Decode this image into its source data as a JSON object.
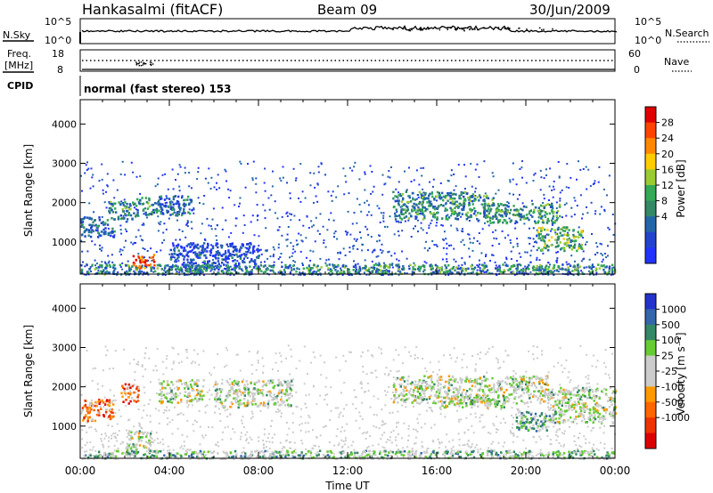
{
  "header": {
    "station": "Hankasalmi (fitACF)",
    "beam": "Beam 09",
    "date": "30/Jun/2009"
  },
  "noise_panel": {
    "left_label": "N.Sky",
    "right_label": "N.Search",
    "left_ticks": [
      "10^5",
      "10^0"
    ],
    "right_ticks": [
      "10^5",
      "10^0"
    ]
  },
  "freq_panel": {
    "left_label_1": "Freq.",
    "left_label_2": "[MHz]",
    "left_ticks": [
      "18",
      "8"
    ],
    "right_label": "Nave",
    "right_ticks": [
      "60",
      "0"
    ],
    "cpid_label": "CPID",
    "cpid_text": "normal (fast stereo) 153"
  },
  "chart_data": [
    {
      "type": "heatmap",
      "name": "power",
      "title": "",
      "xlabel": "",
      "ylabel": "Slant Range [km]",
      "x_ticks": [
        "00:00",
        "04:00",
        "08:00",
        "12:00",
        "16:00",
        "20:00",
        "00:00"
      ],
      "x_range_hours": [
        0,
        24
      ],
      "ylim": [
        180,
        4620
      ],
      "y_ticks": [
        1000,
        2000,
        3000,
        4000
      ],
      "colorbar_label": "Power [dB]",
      "colorbar_ticks": [
        "28",
        "24",
        "20",
        "16",
        "12",
        "8",
        "4"
      ],
      "colorbar_colors": [
        "#e00000",
        "#ff4400",
        "#ff8800",
        "#ffcc00",
        "#99cc33",
        "#33aa55",
        "#338866",
        "#2266aa",
        "#2244cc",
        "#2233ff"
      ],
      "features": [
        {
          "t": [
            0,
            1.5
          ],
          "r": [
            1150,
            1650
          ],
          "level": 7
        },
        {
          "t": [
            1.2,
            2.6
          ],
          "r": [
            1600,
            2050
          ],
          "level": 6
        },
        {
          "t": [
            2.3,
            3.3
          ],
          "r": [
            350,
            700
          ],
          "level": 1
        },
        {
          "t": [
            2.5,
            3.6
          ],
          "r": [
            1700,
            2150
          ],
          "level": 6
        },
        {
          "t": [
            3.5,
            5.0
          ],
          "r": [
            1700,
            2200
          ],
          "level": 7
        },
        {
          "t": [
            4.0,
            8.0
          ],
          "r": [
            300,
            1000
          ],
          "level": 8
        },
        {
          "t": [
            14.0,
            18.5
          ],
          "r": [
            1600,
            2300
          ],
          "level": 6
        },
        {
          "t": [
            18.0,
            21.5
          ],
          "r": [
            1500,
            2000
          ],
          "level": 6
        },
        {
          "t": [
            20.5,
            22.5
          ],
          "r": [
            800,
            1400
          ],
          "level": 5
        },
        {
          "t": [
            0,
            24
          ],
          "r": [
            200,
            450
          ],
          "level": 6
        }
      ]
    },
    {
      "type": "heatmap",
      "name": "velocity",
      "title": "",
      "xlabel": "Time UT",
      "ylabel": "Slant Range [km]",
      "x_ticks": [
        "00:00",
        "04:00",
        "08:00",
        "12:00",
        "16:00",
        "20:00",
        "00:00"
      ],
      "x_range_hours": [
        0,
        24
      ],
      "ylim": [
        180,
        4620
      ],
      "y_ticks": [
        1000,
        2000,
        3000,
        4000
      ],
      "colorbar_label": "Velocity [m s⁻¹]",
      "colorbar_ticks": [
        "1000",
        "500",
        "100",
        "25",
        "-25",
        "-100",
        "-500",
        "-1000"
      ],
      "colorbar_colors": [
        "#2233cc",
        "#3366aa",
        "#338866",
        "#66cc33",
        "#cccccc",
        "#cccccc",
        "#ff9900",
        "#ff6600",
        "#ee3300",
        "#dd0000"
      ],
      "features": [
        {
          "t": [
            0,
            1.5
          ],
          "r": [
            1150,
            1700
          ],
          "level": 7
        },
        {
          "t": [
            1.8,
            2.6
          ],
          "r": [
            1600,
            2100
          ],
          "level": 7
        },
        {
          "t": [
            2.0,
            3.2
          ],
          "r": [
            300,
            900
          ],
          "level": 4
        },
        {
          "t": [
            3.5,
            5.5
          ],
          "r": [
            1600,
            2200
          ],
          "level": 4
        },
        {
          "t": [
            6.0,
            9.5
          ],
          "r": [
            1500,
            2200
          ],
          "level": 4
        },
        {
          "t": [
            14.0,
            21.0
          ],
          "r": [
            1600,
            2300
          ],
          "level": 4
        },
        {
          "t": [
            16.0,
            19.0
          ],
          "r": [
            1500,
            1800
          ],
          "level": 4
        },
        {
          "t": [
            19.5,
            21.5
          ],
          "r": [
            900,
            1400
          ],
          "level": 3
        },
        {
          "t": [
            21.0,
            24.0
          ],
          "r": [
            1100,
            2000
          ],
          "level": 4
        },
        {
          "t": [
            0,
            24
          ],
          "r": [
            200,
            400
          ],
          "level": 3
        }
      ]
    }
  ]
}
